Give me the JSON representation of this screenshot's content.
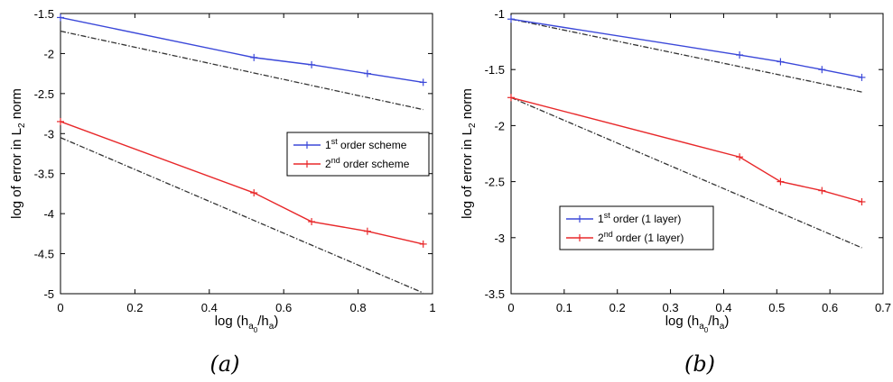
{
  "chart_data": [
    {
      "type": "line",
      "caption": "(a)",
      "xlabel": {
        "prefix": "log (h",
        "sub_a": "a",
        "sub_0": "0",
        "mid": "/h",
        "sub_end": "a",
        "suffix": ")"
      },
      "ylabel": {
        "prefix": "log of error in L",
        "sub": "2",
        "suffix": " norm"
      },
      "xlim": [
        0,
        1
      ],
      "ylim": [
        -5,
        -1.5
      ],
      "xticks": [
        0,
        0.2,
        0.4,
        0.6,
        0.8,
        1
      ],
      "xtick_labels": [
        "0",
        "0.2",
        "0.4",
        "0.6",
        "0.8",
        "1"
      ],
      "yticks": [
        -5,
        -4.5,
        -4,
        -3.5,
        -3,
        -2.5,
        -2,
        -1.5
      ],
      "ytick_labels": [
        "-5",
        "-4.5",
        "-4",
        "-3.5",
        "-3",
        "-2.5",
        "-2",
        "-1.5"
      ],
      "grid": false,
      "legend_position": "right-center",
      "series": [
        {
          "name": "1st order scheme",
          "label_pre": "1",
          "label_sup": "st",
          "label_post": " order scheme",
          "color": "#3b48d9",
          "marker": "+",
          "x": [
            0,
            0.52,
            0.675,
            0.825,
            0.975
          ],
          "y": [
            -1.55,
            -2.05,
            -2.14,
            -2.25,
            -2.36
          ]
        },
        {
          "name": "2nd order scheme",
          "label_pre": "2",
          "label_sup": "nd",
          "label_post": " order scheme",
          "color": "#e8282a",
          "marker": "+",
          "x": [
            0,
            0.52,
            0.675,
            0.825,
            0.975
          ],
          "y": [
            -2.85,
            -3.74,
            -4.1,
            -4.22,
            -4.38
          ]
        }
      ],
      "reference_lines": [
        {
          "color": "#333333",
          "style": "dashdot",
          "x": [
            0,
            0.975
          ],
          "y": [
            -1.72,
            -2.7
          ]
        },
        {
          "color": "#333333",
          "style": "dashdot",
          "x": [
            0,
            0.975
          ],
          "y": [
            -3.05,
            -4.99
          ]
        }
      ]
    },
    {
      "type": "line",
      "caption": "(b)",
      "xlabel": {
        "prefix": "log (h",
        "sub_a": "a",
        "sub_0": "0",
        "mid": "/h",
        "sub_end": "a",
        "suffix": ")"
      },
      "ylabel": {
        "prefix": "log of error in L",
        "sub": "2",
        "suffix": " norm"
      },
      "xlim": [
        0,
        0.7
      ],
      "ylim": [
        -3.5,
        -1
      ],
      "xticks": [
        0,
        0.1,
        0.2,
        0.3,
        0.4,
        0.5,
        0.6,
        0.7
      ],
      "xtick_labels": [
        "0",
        "0.1",
        "0.2",
        "0.3",
        "0.4",
        "0.5",
        "0.6",
        "0.7"
      ],
      "yticks": [
        -3.5,
        -3,
        -2.5,
        -2,
        -1.5,
        -1
      ],
      "ytick_labels": [
        "-3.5",
        "-3",
        "-2.5",
        "-2",
        "-1.5",
        "-1"
      ],
      "grid": false,
      "legend_position": "lower-left",
      "series": [
        {
          "name": "1st order (1 layer)",
          "label_pre": "1",
          "label_sup": "st",
          "label_post": " order (1 layer)",
          "color": "#3b48d9",
          "marker": "+",
          "x": [
            0,
            0.43,
            0.507,
            0.585,
            0.66
          ],
          "y": [
            -1.05,
            -1.37,
            -1.43,
            -1.5,
            -1.57
          ]
        },
        {
          "name": "2nd order (1 layer)",
          "label_pre": "2",
          "label_sup": "nd",
          "label_post": " order (1 layer)",
          "color": "#e8282a",
          "marker": "+",
          "x": [
            0,
            0.43,
            0.507,
            0.585,
            0.66
          ],
          "y": [
            -1.75,
            -2.28,
            -2.5,
            -2.58,
            -2.68
          ]
        }
      ],
      "reference_lines": [
        {
          "color": "#333333",
          "style": "dashdot",
          "x": [
            0,
            0.66
          ],
          "y": [
            -1.05,
            -1.7
          ]
        },
        {
          "color": "#333333",
          "style": "dashdot",
          "x": [
            0,
            0.66
          ],
          "y": [
            -1.75,
            -3.09
          ]
        }
      ]
    }
  ]
}
